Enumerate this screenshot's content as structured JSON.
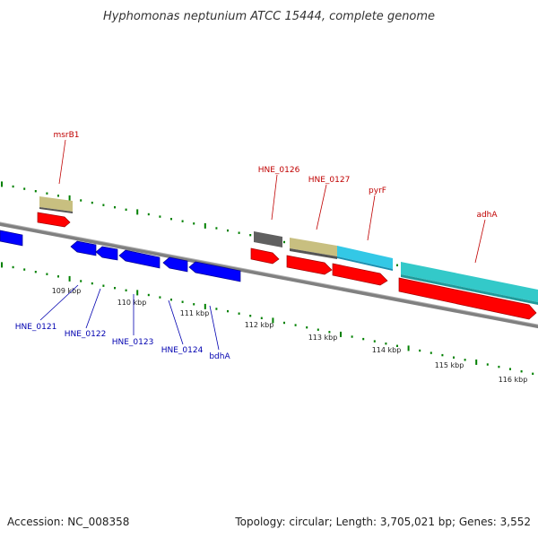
{
  "title": "Hyphomonas neptunium ATCC 15444, complete genome",
  "footer": {
    "accession": "Accession: NC_008358",
    "summary": "Topology: circular; Length: 3,705,021 bp; Genes: 3,552"
  },
  "colors": {
    "forward_cds": "#ff0000",
    "reverse_cds": "#0000ff",
    "backbone": "#808080",
    "tick": "#008000",
    "label_forward": "#c00000",
    "label_reverse": "#0000b0",
    "msrB1_band": "#c8bf80",
    "gray_band": "#606060",
    "cyan_band": "#33c8e6",
    "teal_band": "#33c9c9"
  },
  "scale_labels": [
    "109 kbp",
    "110 kbp",
    "111 kbp",
    "112 kbp",
    "113 kbp",
    "114 kbp",
    "115 kbp",
    "116 kbp"
  ],
  "features_top": [
    {
      "label": "msrB1"
    },
    {
      "label": "HNE_0126"
    },
    {
      "label": "HNE_0127"
    },
    {
      "label": "pyrF"
    },
    {
      "label": "adhA"
    }
  ],
  "features_bottom": [
    {
      "label": "HNE_0121"
    },
    {
      "label": "HNE_0122"
    },
    {
      "label": "HNE_0123"
    },
    {
      "label": "HNE_0124"
    },
    {
      "label": "bdhA"
    }
  ]
}
